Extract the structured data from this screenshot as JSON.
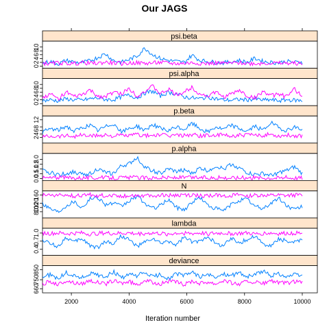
{
  "chart_data": {
    "type": "line",
    "title": "Our JAGS",
    "xlabel": "Iteration number",
    "ylabel": "",
    "xlim": [
      1000,
      10000
    ],
    "x_ticks": [
      "2000",
      "4000",
      "6000",
      "8000",
      "10000"
    ],
    "grid": false,
    "colors": {
      "chain1": "#0080ff",
      "chain2": "#ff00ff",
      "strip_bg": "#ffe5cc"
    },
    "panels": [
      {
        "strip": "psi.beta",
        "ylim": [
          0,
          12
        ],
        "y_tick_labels": [
          "0",
          "2",
          "4",
          "6",
          "8",
          "10"
        ],
        "y_tick_values": [
          0,
          2,
          4,
          6,
          8,
          10
        ],
        "series": [
          {
            "color": "#0080ff",
            "values": [
              1.5,
              2.5,
              1.2,
              3,
              2.2,
              1.8,
              2.8,
              4.5,
              6.5,
              3,
              2,
              3.5,
              5.2,
              9.5,
              6,
              4,
              3,
              2.5,
              2,
              5.8,
              3,
              2.5,
              2,
              1.8,
              2.3,
              3,
              2,
              4.2,
              2.5,
              2,
              1.8,
              2.5,
              2,
              2.2
            ]
          },
          {
            "color": "#ff00ff",
            "values": [
              1.5,
              1.3,
              1.8,
              1.5,
              1.4,
              1.9,
              1.6,
              1.5,
              2.1,
              1.7,
              1.4,
              1.6,
              1.8,
              1.5,
              1.7,
              2,
              1.6,
              1.4,
              1.5,
              1.8,
              1.6,
              1.4,
              1.7,
              1.5,
              1.6,
              1.8,
              1.5,
              1.4,
              1.6,
              1.7,
              1.5,
              1.6,
              1.5,
              1.4
            ]
          }
        ]
      },
      {
        "strip": "psi.alpha",
        "ylim": [
          0,
          12
        ],
        "y_tick_labels": [
          "0",
          "2",
          "4",
          "6",
          "8",
          "10"
        ],
        "y_tick_values": [
          0,
          2,
          4,
          6,
          8,
          10
        ],
        "series": [
          {
            "color": "#0080ff",
            "values": [
              1.5,
              2,
              1.5,
              2.5,
              2,
              1.8,
              2.5,
              3,
              2.2,
              2,
              3.5,
              4.5,
              3,
              5.5,
              6.5,
              4,
              6,
              5,
              3.5,
              3,
              2.5,
              3.5,
              2.5,
              2,
              1.8,
              2.2,
              2,
              2.5,
              1.8,
              2,
              1.5,
              2,
              1.8,
              1.5
            ]
          },
          {
            "color": "#ff00ff",
            "values": [
              3,
              5,
              2.5,
              6,
              3.5,
              4.5,
              7,
              4,
              3.5,
              6,
              5,
              8,
              4,
              6.5,
              9,
              5,
              7.5,
              4.5,
              6,
              8.5,
              5,
              4,
              6,
              3.5,
              5,
              7,
              4,
              3,
              6.5,
              4,
              5,
              3.5,
              7.5,
              4
            ]
          }
        ]
      },
      {
        "strip": "p.beta",
        "ylim": [
          0,
          13
        ],
        "y_tick_labels": [
          "2",
          "4",
          "6",
          "8",
          "12"
        ],
        "y_tick_values": [
          2,
          4,
          6,
          8,
          12
        ],
        "series": [
          {
            "color": "#0080ff",
            "values": [
              5,
              7,
              6,
              8.5,
              5.5,
              7.5,
              9,
              6,
              8,
              10,
              5,
              7,
              8.5,
              6,
              9.5,
              7,
              5.5,
              8,
              6.5,
              10,
              7,
              5,
              8,
              6.5,
              9,
              7,
              5.5,
              8.5,
              6,
              10.5,
              7.5,
              6,
              8,
              6.5
            ]
          },
          {
            "color": "#ff00ff",
            "values": [
              2.5,
              3,
              2.8,
              3.2,
              2.7,
              3.5,
              2.9,
              3.1,
              3.6,
              2.8,
              3.3,
              3,
              3.8,
              2.9,
              3.2,
              3.5,
              2.8,
              3.4,
              3.1,
              3.7,
              2.9,
              3.3,
              3,
              3.5,
              2.8,
              3.2,
              3.6,
              3,
              3.3,
              3.8,
              2.9,
              3.4,
              3.1,
              3
            ]
          }
        ]
      },
      {
        "strip": "p.alpha",
        "ylim": [
          0,
          2.4
        ],
        "y_tick_labels": [
          "0.0",
          "0.5",
          "1.0",
          "1.5",
          "2.0"
        ],
        "y_tick_values": [
          0,
          0.5,
          1,
          1.5,
          2
        ],
        "series": [
          {
            "color": "#0080ff",
            "values": [
              0.8,
              0.6,
              0.4,
              0.5,
              0.7,
              0.4,
              0.5,
              1,
              0.6,
              0.5,
              1.3,
              1.5,
              2.2,
              1.2,
              0.8,
              0.5,
              1,
              0.7,
              0.9,
              0.5,
              1.1,
              0.8,
              1.3,
              1,
              1.5,
              1.1,
              0.6,
              0.4,
              0.5,
              0.3,
              0.6,
              0.8,
              1.2,
              0.5
            ]
          },
          {
            "color": "#ff00ff",
            "values": [
              0.08,
              0.07,
              0.09,
              0.08,
              0.07,
              0.1,
              0.08,
              0.09,
              0.07,
              0.08,
              0.09,
              0.08,
              0.1,
              0.07,
              0.08,
              0.09,
              0.08,
              0.07,
              0.09,
              0.08,
              0.1,
              0.08,
              0.07,
              0.09,
              0.08,
              0.07,
              0.09,
              0.08,
              0.1,
              0.08,
              0.07,
              0.09,
              0.08,
              0.08
            ]
          }
        ]
      },
      {
        "strip": "N",
        "ylim": [
          60,
          170
        ],
        "y_tick_labels": [
          "80",
          "100",
          "120",
          "160"
        ],
        "y_tick_values": [
          80,
          100,
          120,
          160
        ],
        "series": [
          {
            "color": "#0080ff",
            "values": [
              120,
              95,
              80,
              110,
              130,
              100,
              140,
              150,
              115,
              120,
              105,
              130,
              155,
              120,
              95,
              110,
              140,
              100,
              90,
              125,
              150,
              110,
              95,
              85,
              115,
              135,
              140,
              105,
              95,
              120,
              145,
              110,
              90,
              105
            ]
          },
          {
            "color": "#ff00ff",
            "values": [
              158,
              160,
              157,
              159,
              155,
              158,
              160,
              156,
              158,
              159,
              154,
              158,
              160,
              157,
              155,
              159,
              158,
              156,
              160,
              157,
              158,
              155,
              159,
              158,
              157,
              160,
              156,
              158,
              159,
              157,
              158,
              156,
              159,
              158
            ]
          }
        ]
      },
      {
        "strip": "lambda",
        "ylim": [
          0.25,
          1.1
        ],
        "y_tick_labels": [
          "0.4",
          "0.7",
          "1.0"
        ],
        "y_tick_values": [
          0.4,
          0.7,
          1.0
        ],
        "series": [
          {
            "color": "#0080ff",
            "values": [
              0.75,
              0.6,
              0.5,
              0.85,
              0.65,
              0.8,
              0.55,
              0.45,
              0.7,
              0.6,
              0.9,
              0.75,
              0.5,
              0.65,
              0.8,
              0.6,
              0.7,
              0.55,
              0.85,
              0.65,
              0.7,
              0.9,
              0.6,
              0.55,
              0.8,
              0.65,
              0.75,
              0.9,
              0.6,
              0.5,
              0.8,
              0.7,
              0.65,
              0.75
            ]
          },
          {
            "color": "#ff00ff",
            "values": [
              1.0,
              0.98,
              1.0,
              0.97,
              0.99,
              1.0,
              0.96,
              0.99,
              1.0,
              0.98,
              0.99,
              1.0,
              0.97,
              0.99,
              1.0,
              0.98,
              0.96,
              1.0,
              0.99,
              0.98,
              1.0,
              0.97,
              0.99,
              1.0,
              0.98,
              0.99,
              1.0,
              0.96,
              0.99,
              1.0,
              0.98,
              0.99,
              1.0,
              0.98
            ]
          }
        ]
      },
      {
        "strip": "deviance",
        "ylim": [
          640,
          870
        ],
        "y_tick_labels": [
          "660",
          "750",
          "850"
        ],
        "y_tick_values": [
          660,
          750,
          850
        ],
        "series": [
          {
            "color": "#0080ff",
            "values": [
              780,
              800,
              760,
              820,
              790,
              770,
              810,
              800,
              780,
              830,
              770,
              800,
              790,
              820,
              780,
              800,
              760,
              810,
              790,
              830,
              780,
              800,
              770,
              810,
              790,
              820,
              780,
              800,
              840,
              790,
              810,
              780,
              800,
              790
            ]
          },
          {
            "color": "#ff00ff",
            "values": [
              710,
              730,
              700,
              740,
              720,
              710,
              745,
              725,
              705,
              740,
              715,
              730,
              700,
              745,
              720,
              710,
              735,
              725,
              700,
              740,
              715,
              730,
              710,
              745,
              720,
              705,
              735,
              725,
              710,
              740,
              720,
              715,
              730,
              720
            ]
          }
        ]
      }
    ]
  }
}
